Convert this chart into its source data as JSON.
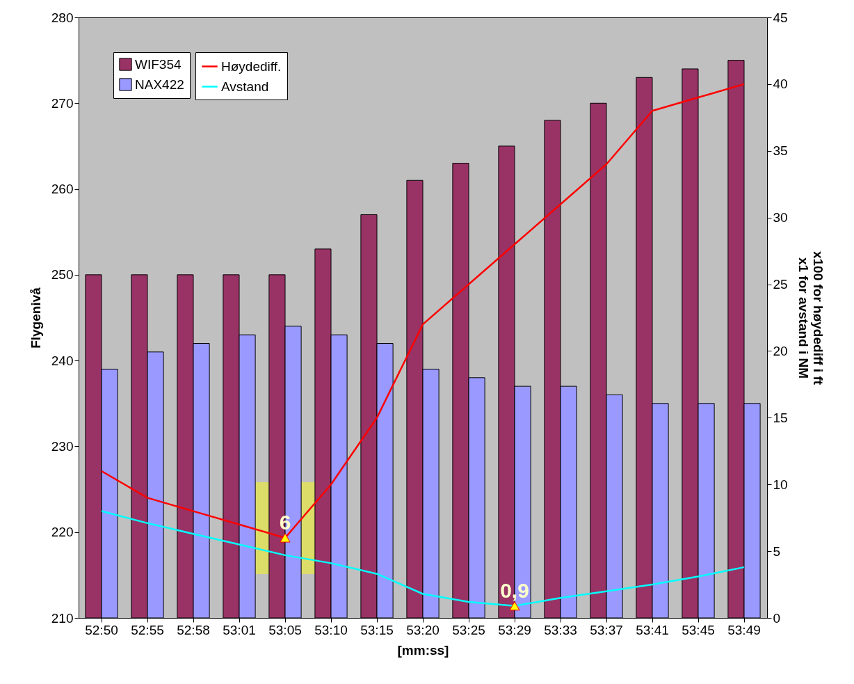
{
  "chart_data": {
    "type": "bar",
    "xlabel": "[mm:ss]",
    "ylabel": "Flygenivå",
    "y2label": "x100 for høydediff i ft\nx1 for avstand i NM",
    "categories": [
      "52:50",
      "52:55",
      "52:58",
      "53:01",
      "53:05",
      "53:10",
      "53:15",
      "53:20",
      "53:25",
      "53:29",
      "53:33",
      "53:37",
      "53:41",
      "53:45",
      "53:49"
    ],
    "series": [
      {
        "name": "WIF354",
        "type": "bar",
        "color": "#993366",
        "values": [
          250,
          250,
          250,
          250,
          250,
          253,
          257,
          261,
          263,
          265,
          268,
          270,
          273,
          274,
          275
        ]
      },
      {
        "name": "NAX422",
        "type": "bar",
        "color": "#9999ff",
        "values": [
          239,
          241,
          242,
          243,
          244,
          243,
          242,
          239,
          238,
          237,
          237,
          236,
          235,
          235,
          235
        ]
      },
      {
        "name": "Høydediff.",
        "type": "line",
        "axis": "y2",
        "color": "#ff0000",
        "values": [
          11,
          9,
          8,
          7,
          6,
          10,
          15,
          22,
          25,
          28,
          31,
          34,
          38,
          39,
          40
        ]
      },
      {
        "name": "Avstand",
        "type": "line",
        "axis": "y2",
        "color": "#00ffff",
        "values": [
          8,
          7.1,
          6.3,
          5.5,
          4.7,
          4.1,
          3.3,
          1.8,
          1.2,
          0.9,
          1.5,
          2,
          2.5,
          3.1,
          3.8
        ]
      },
      {
        "type": "scatter",
        "axis": "y2",
        "color": "#ffff00",
        "marker": "triangle",
        "x": [
          "53:05",
          "53:29"
        ],
        "values": [
          6,
          0.9
        ]
      }
    ],
    "ylim": [
      210,
      280
    ],
    "yticks": [
      210,
      220,
      230,
      240,
      250,
      260,
      270,
      280
    ],
    "y2lim": [
      0,
      45
    ],
    "y2ticks": [
      0,
      5,
      10,
      15,
      20,
      25,
      30,
      35,
      40,
      45
    ],
    "annotations": [
      "6",
      "0,9"
    ],
    "legend": "top left",
    "grid": false
  }
}
